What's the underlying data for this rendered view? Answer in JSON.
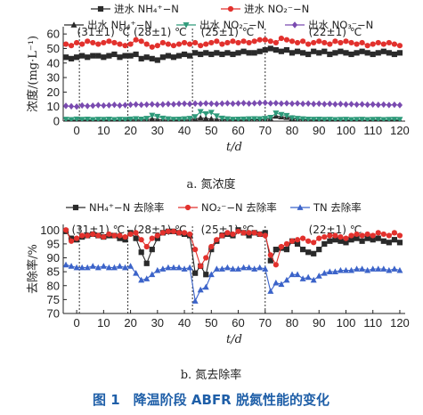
{
  "figure_caption": "图 1　降温阶段 ABFR 脱氮性能的变化",
  "colors": {
    "black": "#2a2a2a",
    "red": "#e2312d",
    "green": "#2e9a7a",
    "purple": "#7a4bb0",
    "blue": "#3b63c9",
    "caption": "#1f5fa8"
  },
  "chart_data": [
    {
      "type": "line",
      "subcaption": "a. 氮浓度",
      "ylabel": "浓度/(mg·L⁻¹)",
      "xlabel": "t/d",
      "xlim": [
        -5,
        122
      ],
      "ylim": [
        0,
        65
      ],
      "xticks": [
        0,
        10,
        20,
        30,
        40,
        50,
        60,
        70,
        80,
        90,
        100,
        110,
        120
      ],
      "yticks": [
        0,
        10,
        20,
        30,
        40,
        50,
        60
      ],
      "phase_boundaries": [
        1,
        19,
        43,
        70
      ],
      "phase_labels": [
        {
          "text": "(31±1) ℃",
          "x": 10
        },
        {
          "text": "(28±1) ℃",
          "x": 31
        },
        {
          "text": "(25±1) ℃",
          "x": 56
        },
        {
          "text": "(22±1) ℃",
          "x": 96
        }
      ],
      "legend": [
        [
          "进水 NH₄⁺−N",
          "进水 NO₂⁻−N"
        ],
        [
          "出水 NH₄⁺−N",
          "出水 NO₂⁻−N",
          "出水 NO₃⁻−N"
        ]
      ],
      "x": [
        -4,
        -2,
        0,
        2,
        4,
        6,
        8,
        10,
        12,
        14,
        16,
        18,
        20,
        22,
        24,
        26,
        28,
        30,
        32,
        34,
        36,
        38,
        40,
        42,
        44,
        46,
        48,
        50,
        52,
        54,
        56,
        58,
        60,
        62,
        64,
        66,
        68,
        70,
        72,
        74,
        76,
        78,
        80,
        82,
        84,
        86,
        88,
        90,
        92,
        94,
        96,
        98,
        100,
        102,
        104,
        106,
        108,
        110,
        112,
        114,
        116,
        118,
        120
      ],
      "series": [
        {
          "name": "进水 NH₄⁺−N",
          "marker": "square",
          "color": "black",
          "values": [
            44,
            43,
            44,
            45,
            44,
            45,
            45,
            44,
            45,
            46,
            44,
            45,
            45,
            46,
            43,
            44,
            43,
            42,
            44,
            45,
            44,
            45,
            46,
            45,
            47,
            46,
            47,
            46,
            47,
            46,
            47,
            46,
            47,
            48,
            47,
            47,
            48,
            49,
            50,
            49,
            48,
            49,
            47,
            48,
            47,
            46,
            48,
            47,
            48,
            46,
            47,
            48,
            47,
            46,
            47,
            48,
            47,
            46,
            47,
            48,
            47,
            46,
            47
          ]
        },
        {
          "name": "进水 NO₂⁻−N",
          "marker": "circle",
          "color": "red",
          "values": [
            53,
            52,
            54,
            53,
            55,
            54,
            53,
            54,
            55,
            54,
            53,
            52,
            53,
            56,
            55,
            53,
            51,
            52,
            54,
            53,
            52,
            53,
            54,
            53,
            54,
            52,
            53,
            54,
            55,
            53,
            54,
            55,
            54,
            55,
            54,
            55,
            56,
            56,
            55,
            54,
            57,
            56,
            55,
            54,
            55,
            53,
            54,
            55,
            54,
            53,
            55,
            54,
            55,
            54,
            53,
            54,
            52,
            53,
            54,
            53,
            54,
            53,
            52
          ]
        },
        {
          "name": "出水 NH₄⁺−N",
          "marker": "triangle-up",
          "color": "black",
          "values": [
            0.5,
            0.6,
            0.4,
            0.5,
            0.6,
            0.5,
            0.4,
            0.6,
            0.5,
            0.4,
            0.6,
            0.5,
            0.7,
            0.8,
            0.6,
            0.9,
            1.6,
            1.2,
            0.8,
            0.6,
            0.5,
            0.6,
            0.7,
            0.8,
            1.5,
            2.2,
            1.8,
            1.5,
            1.2,
            1.0,
            0.8,
            0.7,
            0.6,
            0.7,
            0.8,
            0.9,
            1.0,
            1.1,
            1.5,
            3.5,
            3.0,
            2.6,
            2.0,
            1.2,
            1.0,
            0.8,
            0.7,
            0.6,
            0.5,
            0.6,
            0.5,
            0.4,
            0.5,
            0.6,
            0.5,
            0.4,
            0.5,
            0.6,
            0.5,
            0.4,
            0.5,
            0.6,
            0.5
          ]
        },
        {
          "name": "出水 NO₂⁻−N",
          "marker": "triangle-down",
          "color": "green",
          "values": [
            1.2,
            1.0,
            1.4,
            1.1,
            1.3,
            1.0,
            1.2,
            1.1,
            1.3,
            1.0,
            1.2,
            1.1,
            1.4,
            1.6,
            1.3,
            1.8,
            4.0,
            3.2,
            2.0,
            1.5,
            1.2,
            1.3,
            1.5,
            1.8,
            3.0,
            6.5,
            5.0,
            6.0,
            3.5,
            2.0,
            1.5,
            1.2,
            1.3,
            1.4,
            1.5,
            1.6,
            1.5,
            1.8,
            2.5,
            5.5,
            4.5,
            3.8,
            2.2,
            1.8,
            1.5,
            1.3,
            1.2,
            1.3,
            1.1,
            1.2,
            1.0,
            1.1,
            1.2,
            1.0,
            1.1,
            1.2,
            1.0,
            1.1,
            1.2,
            1.0,
            1.1,
            1.2,
            1.1
          ]
        },
        {
          "name": "出水 NO₃⁻−N",
          "marker": "diamond",
          "color": "purple",
          "values": [
            10.5,
            10.2,
            10.0,
            10.8,
            10.4,
            10.6,
            11.0,
            10.7,
            10.9,
            11.2,
            10.8,
            11.0,
            11.3,
            11.5,
            11.2,
            11.4,
            11.6,
            11.3,
            11.5,
            11.8,
            11.6,
            11.9,
            12.0,
            11.8,
            12.1,
            11.9,
            12.2,
            12.0,
            11.8,
            12.1,
            12.3,
            12.0,
            12.2,
            12.4,
            12.1,
            12.3,
            12.5,
            12.6,
            12.2,
            12.4,
            12.1,
            12.3,
            12.0,
            12.2,
            11.9,
            12.1,
            11.8,
            12.0,
            11.7,
            11.9,
            11.6,
            11.8,
            11.5,
            11.7,
            11.4,
            11.6,
            11.3,
            11.5,
            11.2,
            11.4,
            11.1,
            11.3,
            11.0
          ]
        }
      ]
    },
    {
      "type": "line",
      "subcaption": "b. 氮去除率",
      "ylabel": "去除率/%",
      "xlabel": "t/d",
      "xlim": [
        -5,
        122
      ],
      "ylim": [
        70,
        102
      ],
      "xticks": [
        0,
        10,
        20,
        30,
        40,
        50,
        60,
        70,
        80,
        90,
        100,
        110,
        120
      ],
      "yticks": [
        70,
        75,
        80,
        85,
        90,
        95,
        100
      ],
      "phase_boundaries": [
        1,
        19,
        43,
        70
      ],
      "phase_labels": [
        {
          "text": "(31±1) ℃",
          "x": 8
        },
        {
          "text": "(28±1) ℃",
          "x": 31
        },
        {
          "text": "(25±1) ℃",
          "x": 56
        },
        {
          "text": "(22±1) ℃",
          "x": 96
        }
      ],
      "legend": [
        [
          "NH₄⁺−N 去除率",
          "NO₂⁻−N 去除率",
          "TN 去除率"
        ]
      ],
      "x": [
        -4,
        -2,
        0,
        2,
        4,
        6,
        8,
        10,
        12,
        14,
        16,
        18,
        20,
        22,
        24,
        26,
        28,
        30,
        32,
        34,
        36,
        38,
        40,
        42,
        44,
        46,
        48,
        50,
        52,
        54,
        56,
        58,
        60,
        62,
        64,
        66,
        68,
        70,
        72,
        74,
        76,
        78,
        80,
        82,
        84,
        86,
        88,
        90,
        92,
        94,
        96,
        98,
        100,
        102,
        104,
        106,
        108,
        110,
        112,
        114,
        116,
        118,
        120
      ],
      "series": [
        {
          "name": "NH₄⁺−N 去除率",
          "marker": "square",
          "color": "black",
          "values": [
            99.5,
            97,
            96.5,
            97.5,
            98,
            98.5,
            98,
            97.5,
            98,
            98,
            97,
            96.5,
            99,
            97,
            92,
            88,
            93,
            97,
            99,
            99.5,
            99.5,
            99,
            98.5,
            98,
            84.5,
            87,
            84,
            93,
            96,
            98,
            98.5,
            98,
            100,
            99,
            98,
            99,
            98.5,
            99,
            89,
            93,
            93.5,
            93,
            96,
            95,
            93,
            92,
            91.5,
            93,
            95,
            96,
            96.5,
            96,
            95.5,
            96.5,
            97,
            96,
            97,
            96.5,
            97,
            96,
            95.5,
            96.5,
            95.5
          ]
        },
        {
          "name": "NO₂⁻−N 去除率",
          "marker": "circle",
          "color": "red",
          "values": [
            100,
            96,
            97,
            98,
            98,
            98.5,
            98,
            97.5,
            98.5,
            98,
            98,
            97.5,
            98.5,
            99,
            96.5,
            94,
            97,
            98,
            99,
            99.5,
            99.5,
            99,
            99,
            98.5,
            93,
            87,
            90,
            94,
            96.5,
            98,
            99,
            98.5,
            99.5,
            99,
            99,
            99,
            98.5,
            98,
            91,
            87.5,
            94,
            95,
            96,
            96.5,
            97,
            96,
            95.5,
            97,
            97.5,
            98,
            98,
            97.5,
            97,
            98,
            98.5,
            98,
            98.5,
            98,
            99,
            98.5,
            98,
            99,
            98
          ]
        },
        {
          "name": "TN 去除率",
          "marker": "triangle-up",
          "color": "blue",
          "values": [
            87.5,
            87,
            86.5,
            86.5,
            86.5,
            87,
            86.5,
            87,
            86.5,
            86.5,
            87,
            86.5,
            87,
            84.5,
            82,
            82.5,
            84,
            85.5,
            86,
            86.5,
            86.5,
            86.5,
            86,
            86.5,
            74.5,
            78.5,
            79.5,
            84,
            86,
            86,
            86.5,
            86,
            86,
            86.5,
            86.5,
            86,
            86.5,
            86,
            78,
            81,
            80.5,
            82,
            84,
            84,
            82.5,
            83,
            82,
            83.5,
            84.5,
            85,
            85,
            85.5,
            85.5,
            85.5,
            86,
            86,
            85.5,
            86,
            86,
            86,
            85.5,
            86,
            85.5
          ]
        }
      ]
    }
  ]
}
